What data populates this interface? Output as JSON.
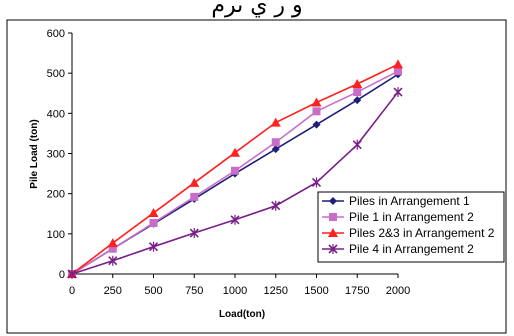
{
  "title_fragment": "و ر ي ىرم",
  "chart_data": {
    "type": "line",
    "xlabel": "Load(ton)",
    "ylabel": "Pile Load (ton)",
    "x": [
      0,
      250,
      500,
      750,
      1000,
      1250,
      1500,
      1750,
      2000
    ],
    "xlim": [
      0,
      2000
    ],
    "ylim": [
      0,
      600
    ],
    "xticks": [
      0,
      250,
      500,
      750,
      1000,
      1250,
      1500,
      1750,
      2000
    ],
    "yticks": [
      0,
      100,
      200,
      300,
      400,
      500,
      600
    ],
    "grid": false,
    "legend_position": "bottom-right",
    "series": [
      {
        "name": "Piles in Arrangement 1",
        "color": "#1f1f7a",
        "marker": "diamond",
        "values": [
          0,
          63,
          125,
          187,
          250,
          311,
          372,
          433,
          497
        ]
      },
      {
        "name": "Pile 1 in Arrangement 2",
        "color": "#c86ec8",
        "marker": "square",
        "values": [
          0,
          63,
          127,
          192,
          257,
          328,
          405,
          453,
          505
        ]
      },
      {
        "name": "Piles 2&3 in Arrangement 2",
        "color": "#ff2020",
        "marker": "triangle",
        "values": [
          0,
          77,
          152,
          227,
          302,
          377,
          427,
          473,
          522
        ]
      },
      {
        "name": "Pile 4 in Arrangement 2",
        "color": "#7a1f8a",
        "marker": "x",
        "values": [
          0,
          33,
          68,
          102,
          135,
          170,
          228,
          322,
          453
        ]
      }
    ]
  }
}
